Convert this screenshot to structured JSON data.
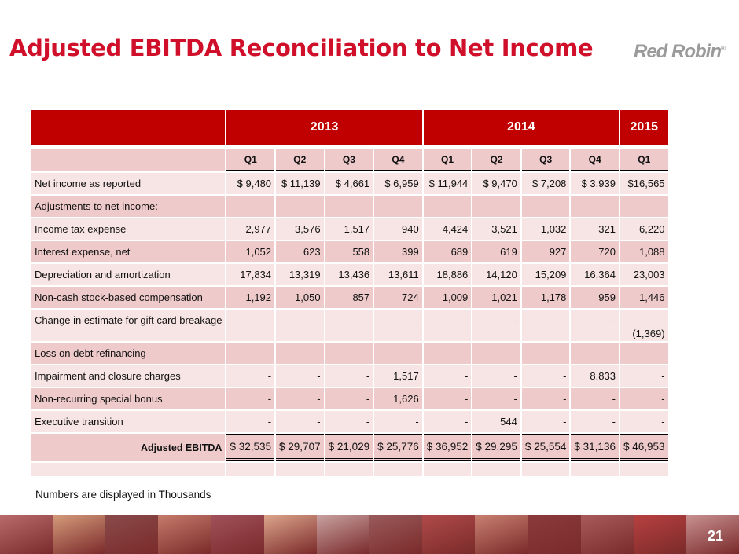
{
  "title": "Adjusted EBITDA Reconciliation to Net Income",
  "logo": "Red Robin",
  "years": [
    "2013",
    "2014",
    "2015"
  ],
  "quarters": [
    "Q1",
    "Q2",
    "Q3",
    "Q4",
    "Q1",
    "Q2",
    "Q3",
    "Q4",
    "Q1"
  ],
  "rows": [
    {
      "label": "Net income as reported",
      "values": [
        "$  9,480",
        "$ 11,139",
        "$  4,661",
        "$ 6,959",
        "$ 11,944",
        "$  9,470",
        "$   7,208",
        "$   3,939",
        "$16,565"
      ]
    },
    {
      "label": "Adjustments to net income:",
      "values": [
        "",
        "",
        "",
        "",
        "",
        "",
        "",
        "",
        ""
      ]
    },
    {
      "label": "Income tax expense",
      "values": [
        "2,977",
        "3,576",
        "1,517",
        "940",
        "4,424",
        "3,521",
        "1,032",
        "321",
        "6,220"
      ]
    },
    {
      "label": "Interest expense, net",
      "values": [
        "1,052",
        "623",
        "558",
        "399",
        "689",
        "619",
        "927",
        "720",
        "1,088"
      ]
    },
    {
      "label": "Depreciation and amortization",
      "values": [
        "17,834",
        "13,319",
        "13,436",
        "13,611",
        "18,886",
        "14,120",
        "15,209",
        "16,364",
        "23,003"
      ]
    },
    {
      "label": "Non-cash stock-based compensation",
      "values": [
        "1,192",
        "1,050",
        "857",
        "724",
        "1,009",
        "1,021",
        "1,178",
        "959",
        "1,446"
      ]
    },
    {
      "label": "Change in estimate for gift card breakage",
      "values": [
        "-",
        "-",
        "-",
        "-",
        "-",
        "-",
        "-",
        "-",
        "(1,369)"
      ]
    },
    {
      "label": "Loss on debt refinancing",
      "values": [
        "-",
        "-",
        "-",
        "-",
        "-",
        "-",
        "-",
        "-",
        "-"
      ]
    },
    {
      "label": "Impairment and closure charges",
      "values": [
        "-",
        "-",
        "-",
        "1,517",
        "-",
        "-",
        "-",
        "8,833",
        "-"
      ]
    },
    {
      "label": "Non-recurring special bonus",
      "values": [
        "-",
        "-",
        "-",
        "1,626",
        "-",
        "-",
        "-",
        "-",
        "-"
      ]
    },
    {
      "label": "Executive transition",
      "values": [
        "-",
        "-",
        "-",
        "-",
        "-",
        "544",
        "-",
        "-",
        "-"
      ]
    }
  ],
  "total": {
    "label": "Adjusted EBITDA",
    "values": [
      "$ 32,535",
      "$ 29,707",
      "$ 21,029",
      "$ 25,776",
      "$ 36,952",
      "$ 29,295",
      "$ 25,554",
      "$ 31,136",
      "$ 46,953"
    ]
  },
  "note": "Numbers are displayed in Thousands",
  "page_number": "21",
  "colors": {
    "accent": "#c00000",
    "title": "#d0102a",
    "row_light": "#f7e4e4",
    "row_dark": "#efcaca"
  }
}
